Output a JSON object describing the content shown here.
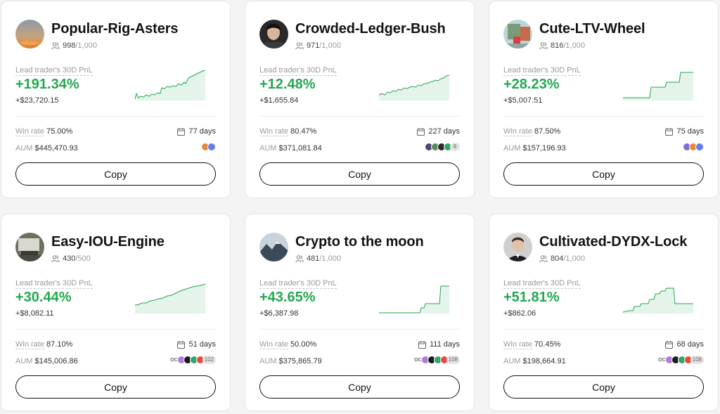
{
  "labels": {
    "pnl": "Lead trader's 30D PnL",
    "win_rate": "Win rate",
    "aum": "AUM",
    "copy": "Copy"
  },
  "icons": {
    "copiers": "user-group-icon",
    "days": "calendar-icon"
  },
  "colors": {
    "accent_green": "#25a750",
    "text_primary": "#121212",
    "text_muted": "#9a9a9a"
  },
  "cards": [
    {
      "name": "Popular-Rig-Asters",
      "copiers": "998",
      "copiers_max": "/1,000",
      "pnl_pct": "+191.34%",
      "pnl_abs": "+$23,720.15",
      "win_rate": "75.00%",
      "days": "77 days",
      "aum": "$445,470.93",
      "coin_more": "",
      "oc": ""
    },
    {
      "name": "Crowded-Ledger-Bush",
      "copiers": "971",
      "copiers_max": "/1,000",
      "pnl_pct": "+12.48%",
      "pnl_abs": "+$1,655.84",
      "win_rate": "80.47%",
      "days": "227 days",
      "aum": "$371,081.84",
      "coin_more": "8",
      "oc": ""
    },
    {
      "name": "Cute-LTV-Wheel",
      "copiers": "816",
      "copiers_max": "/1,000",
      "pnl_pct": "+28.23%",
      "pnl_abs": "+$5,007.51",
      "win_rate": "87.50%",
      "days": "75 days",
      "aum": "$157,196.93",
      "coin_more": "",
      "oc": ""
    },
    {
      "name": "Easy-IOU-Engine",
      "copiers": "430",
      "copiers_max": "/500",
      "pnl_pct": "+30.44%",
      "pnl_abs": "+$8,082.11",
      "win_rate": "87.10%",
      "days": "51 days",
      "aum": "$145,006.86",
      "coin_more": "102",
      "oc": "OC"
    },
    {
      "name": "Crypto to the moon",
      "copiers": "481",
      "copiers_max": "/1,000",
      "pnl_pct": "+43.65%",
      "pnl_abs": "+$6,387.98",
      "win_rate": "50.00%",
      "days": "111 days",
      "aum": "$375,865.79",
      "coin_more": "108",
      "oc": "OC"
    },
    {
      "name": "Cultivated-DYDX-Lock",
      "copiers": "804",
      "copiers_max": "/1,000",
      "pnl_pct": "+51.81%",
      "pnl_abs": "+$862.06",
      "win_rate": "70.45%",
      "days": "68 days",
      "aum": "$198,664.91",
      "coin_more": "108",
      "oc": "OC"
    }
  ]
}
